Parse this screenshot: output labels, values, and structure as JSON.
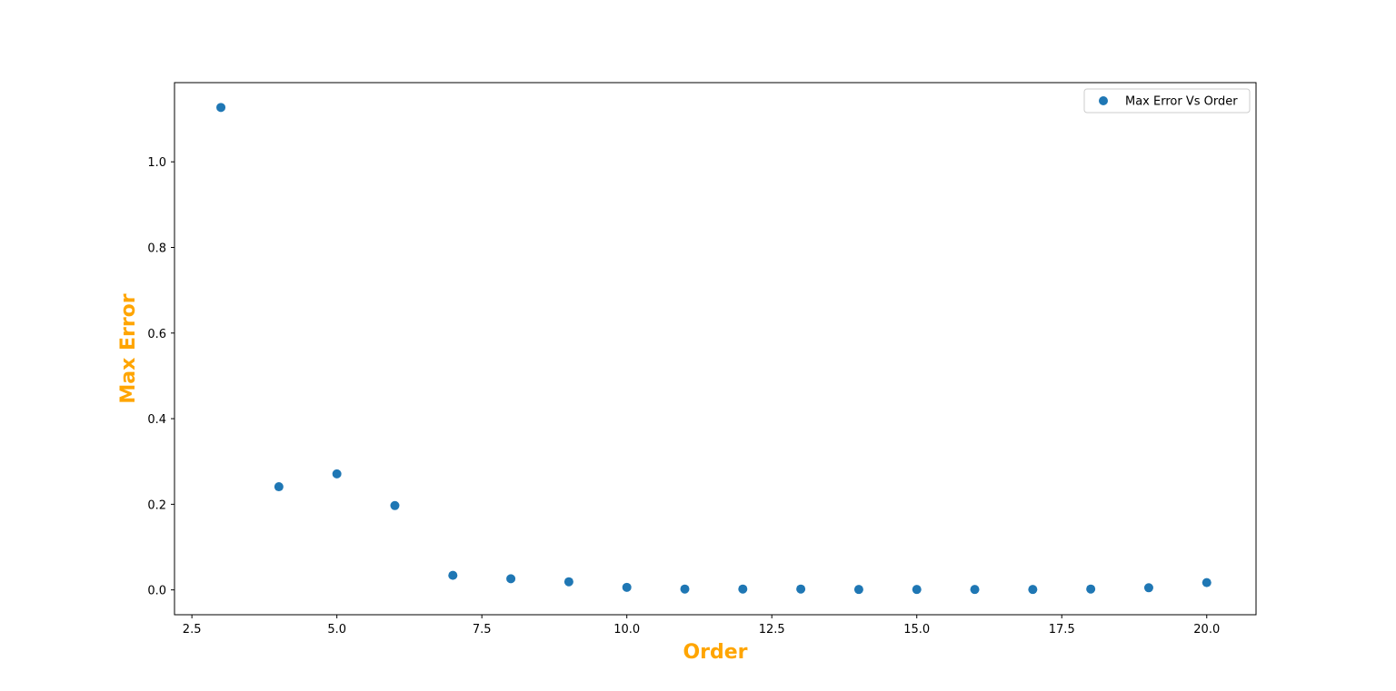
{
  "chart_data": {
    "type": "scatter",
    "title": "",
    "xlabel": "Order",
    "ylabel": "Max Error",
    "axis_label_color": "#ffa500",
    "xlim": [
      2.2,
      20.85
    ],
    "ylim": [
      -0.058,
      1.185
    ],
    "xticks": [
      2.5,
      5.0,
      7.5,
      10.0,
      12.5,
      15.0,
      17.5,
      20.0
    ],
    "xtick_labels": [
      "2.5",
      "5.0",
      "7.5",
      "10.0",
      "12.5",
      "15.0",
      "17.5",
      "20.0"
    ],
    "yticks": [
      0.0,
      0.2,
      0.4,
      0.6,
      0.8,
      1.0
    ],
    "ytick_labels": [
      "0.0",
      "0.2",
      "0.4",
      "0.6",
      "0.8",
      "1.0"
    ],
    "grid": false,
    "legend_position": "top-right",
    "series": [
      {
        "name": "Max Error Vs Order",
        "color": "#1f77b4",
        "x": [
          3,
          4,
          5,
          6,
          7,
          8,
          9,
          10,
          11,
          12,
          13,
          14,
          15,
          16,
          17,
          18,
          19,
          20
        ],
        "y": [
          1.127,
          0.241,
          0.271,
          0.197,
          0.034,
          0.026,
          0.019,
          0.006,
          0.002,
          0.002,
          0.002,
          0.001,
          0.001,
          0.001,
          0.001,
          0.002,
          0.005,
          0.017
        ]
      }
    ]
  }
}
